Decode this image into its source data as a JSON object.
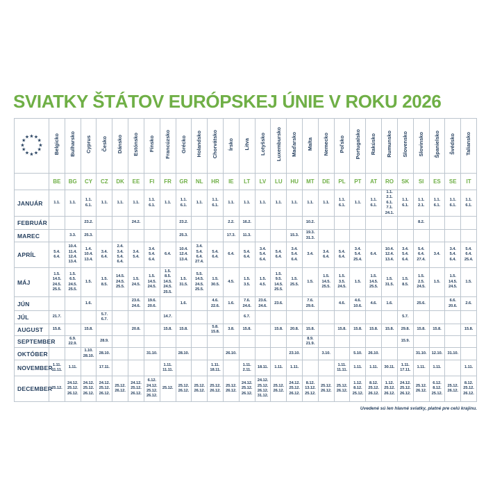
{
  "title": "SVIATKY ŠTÁTOV EURÓPSKEJ ÚNIE V ROKU 2026",
  "footnote": "Uvedené sú len hlavné sviatky, platné pre celú krajinu.",
  "logo_icon": "eu-stars",
  "colors": {
    "green": "#6faf46",
    "navy": "#26405f",
    "border": "#bcc5ce"
  },
  "countries": [
    {
      "name": "Belgicko",
      "code": "BE"
    },
    {
      "name": "Bulharsko",
      "code": "BG"
    },
    {
      "name": "Cyprus",
      "code": "CY"
    },
    {
      "name": "Česko",
      "code": "CZ"
    },
    {
      "name": "Dánsko",
      "code": "DK"
    },
    {
      "name": "Estónsko",
      "code": "EE"
    },
    {
      "name": "Fínsko",
      "code": "FI"
    },
    {
      "name": "Francúzsko",
      "code": "FR"
    },
    {
      "name": "Grécko",
      "code": "GR"
    },
    {
      "name": "Holandsko",
      "code": "NL"
    },
    {
      "name": "Chorvátsko",
      "code": "HR"
    },
    {
      "name": "Írsko",
      "code": "IE"
    },
    {
      "name": "Litva",
      "code": "LT"
    },
    {
      "name": "Lotyšsko",
      "code": "LV"
    },
    {
      "name": "Luxembursko",
      "code": "LU"
    },
    {
      "name": "Maďarsko",
      "code": "HU"
    },
    {
      "name": "Malta",
      "code": "MT"
    },
    {
      "name": "Nemecko",
      "code": "DE"
    },
    {
      "name": "Poľsko",
      "code": "PL"
    },
    {
      "name": "Portugalsko",
      "code": "PT"
    },
    {
      "name": "Rakúsko",
      "code": "AT"
    },
    {
      "name": "Rumunsko",
      "code": "RO"
    },
    {
      "name": "Slovensko",
      "code": "SK"
    },
    {
      "name": "Slovinsko",
      "code": "SI"
    },
    {
      "name": "Španielsko",
      "code": "ES"
    },
    {
      "name": "Švédsko",
      "code": "SE"
    },
    {
      "name": "Taliansko",
      "code": "IT"
    }
  ],
  "rows": [
    {
      "month": "JANUÁR",
      "cells": {
        "BE": [
          "1.1."
        ],
        "BG": [
          "1.1."
        ],
        "CY": [
          "1.1.",
          "6.1."
        ],
        "CZ": [
          "1.1."
        ],
        "DK": [
          "1.1."
        ],
        "EE": [
          "1.1."
        ],
        "FI": [
          "1.1.",
          "6.1."
        ],
        "FR": [
          "1.1."
        ],
        "GR": [
          "1.1.",
          "6.1."
        ],
        "NL": [
          "1.1."
        ],
        "HR": [
          "1.1.",
          "6.1."
        ],
        "IE": [
          "1.1."
        ],
        "LT": [
          "1.1."
        ],
        "LV": [
          "1.1."
        ],
        "LU": [
          "1.1."
        ],
        "HU": [
          "1.1."
        ],
        "MT": [
          "1.1."
        ],
        "DE": [
          "1.1."
        ],
        "PL": [
          "1.1.",
          "6.1."
        ],
        "PT": [
          "1.1."
        ],
        "AT": [
          "1.1.",
          "6.1."
        ],
        "RO": [
          "1.1.",
          "2.1.",
          "6.1.",
          "7.1.",
          "24.1."
        ],
        "SK": [
          "1.1.",
          "6.1."
        ],
        "SI": [
          "1.1.",
          "2.1."
        ],
        "ES": [
          "1.1.",
          "6.1."
        ],
        "SE": [
          "1.1.",
          "6.1."
        ],
        "IT": [
          "1.1.",
          "6.1."
        ]
      }
    },
    {
      "month": "FEBRUÁR",
      "cells": {
        "CY": [
          "23.2."
        ],
        "EE": [
          "24.2."
        ],
        "GR": [
          "23.2."
        ],
        "IE": [
          "2.2."
        ],
        "LT": [
          "16.2."
        ],
        "MT": [
          "10.2."
        ],
        "SI": [
          "8.2."
        ]
      }
    },
    {
      "month": "MAREC",
      "cells": {
        "BG": [
          "3.3."
        ],
        "CY": [
          "25.3."
        ],
        "GR": [
          "25.3."
        ],
        "IE": [
          "17.3."
        ],
        "LT": [
          "11.3."
        ],
        "HU": [
          "15.3."
        ],
        "MT": [
          "19.3.",
          "31.3."
        ]
      }
    },
    {
      "month": "APRÍL",
      "cells": {
        "BE": [
          "5.4.",
          "6.4."
        ],
        "BG": [
          "10.4.",
          "11.4.",
          "12.4.",
          "13.4."
        ],
        "CY": [
          "1.4.",
          "10.4.",
          "13.4."
        ],
        "CZ": [
          "3.4.",
          "6.4."
        ],
        "DK": [
          "2.4.",
          "3.4.",
          "5.4.",
          "6.4."
        ],
        "EE": [
          "3.4.",
          "5.4."
        ],
        "FI": [
          "3.4.",
          "5.4.",
          "6.4."
        ],
        "FR": [
          "6.4."
        ],
        "GR": [
          "10.4.",
          "12.4.",
          "13.4."
        ],
        "NL": [
          "3.4.",
          "5.4.",
          "6.4.",
          "27.4."
        ],
        "HR": [
          "5.4.",
          "6.4."
        ],
        "IE": [
          "6.4."
        ],
        "LT": [
          "5.4.",
          "6.4."
        ],
        "LV": [
          "3.4.",
          "5.4.",
          "6.4."
        ],
        "LU": [
          "5.4.",
          "6.4."
        ],
        "HU": [
          "3.4.",
          "5.4.",
          "6.4."
        ],
        "MT": [
          "3.4."
        ],
        "DE": [
          "3.4.",
          "6.4."
        ],
        "PL": [
          "5.4.",
          "6.4."
        ],
        "PT": [
          "3.4.",
          "5.4.",
          "25.4."
        ],
        "AT": [
          "6.4."
        ],
        "RO": [
          "10.4.",
          "12.4.",
          "13.4."
        ],
        "SK": [
          "3.4.",
          "5.4.",
          "6.4."
        ],
        "SI": [
          "5.4.",
          "6.4.",
          "27.4."
        ],
        "ES": [
          "3.4."
        ],
        "SE": [
          "3.4.",
          "5.4.",
          "6.4."
        ],
        "IT": [
          "5.4.",
          "6.4.",
          "25.4."
        ]
      }
    },
    {
      "month": "MÁJ",
      "cells": {
        "BE": [
          "1.5.",
          "14.5.",
          "24.5.",
          "25.5."
        ],
        "BG": [
          "1.5.",
          "6.5.",
          "24.5.",
          "25.5."
        ],
        "CY": [
          "1.5."
        ],
        "CZ": [
          "1.5.",
          "8.5."
        ],
        "DK": [
          "14.5.",
          "24.5.",
          "25.5."
        ],
        "EE": [
          "1.5.",
          "24.5."
        ],
        "FI": [
          "1.5.",
          "14.5.",
          "24.5."
        ],
        "FR": [
          "1.5.",
          "8.5.",
          "14.5.",
          "24.5.",
          "25.5."
        ],
        "GR": [
          "1.5.",
          "31.5."
        ],
        "NL": [
          "5.5.",
          "14.5.",
          "24.5.",
          "25.5."
        ],
        "HR": [
          "1.5.",
          "30.5."
        ],
        "IE": [
          "4.5."
        ],
        "LT": [
          "1.5.",
          "3.5."
        ],
        "LV": [
          "1.5.",
          "4.5."
        ],
        "LU": [
          "1.5.",
          "9.5.",
          "14.5.",
          "25.5."
        ],
        "HU": [
          "1.5.",
          "25.5."
        ],
        "MT": [
          "1.5."
        ],
        "DE": [
          "1.5.",
          "14.5.",
          "25.5."
        ],
        "PL": [
          "1.5.",
          "3.5.",
          "24.5."
        ],
        "PT": [
          "1.5."
        ],
        "AT": [
          "1.5.",
          "14.5.",
          "25.5."
        ],
        "RO": [
          "1.5.",
          "31.5."
        ],
        "SK": [
          "1.5.",
          "8.5."
        ],
        "SI": [
          "1.5.",
          "2.5.",
          "24.5."
        ],
        "ES": [
          "1.5."
        ],
        "SE": [
          "1.5.",
          "14.5.",
          "24.5."
        ],
        "IT": [
          "1.5."
        ]
      }
    },
    {
      "month": "JÚN",
      "cells": {
        "CY": [
          "1.6."
        ],
        "EE": [
          "23.6.",
          "24.6."
        ],
        "FI": [
          "19.6.",
          "20.6."
        ],
        "GR": [
          "1.6."
        ],
        "HR": [
          "4.6.",
          "22.6."
        ],
        "IE": [
          "1.6."
        ],
        "LT": [
          "7.6.",
          "24.6."
        ],
        "LV": [
          "23.6.",
          "24.6."
        ],
        "LU": [
          "23.6."
        ],
        "MT": [
          "7.6.",
          "29.6."
        ],
        "PL": [
          "4.6."
        ],
        "PT": [
          "4.6.",
          "10.6."
        ],
        "AT": [
          "4.6."
        ],
        "RO": [
          "1.6."
        ],
        "SI": [
          "25.6."
        ],
        "SE": [
          "6.6.",
          "20.6."
        ],
        "IT": [
          "2.6."
        ]
      }
    },
    {
      "month": "JÚL",
      "cells": {
        "BE": [
          "21.7."
        ],
        "CZ": [
          "5.7.",
          "6.7."
        ],
        "FR": [
          "14.7."
        ],
        "LT": [
          "6.7."
        ],
        "SK": [
          "5.7."
        ]
      }
    },
    {
      "month": "AUGUST",
      "cells": {
        "BE": [
          "15.8."
        ],
        "CY": [
          "15.8."
        ],
        "EE": [
          "20.8."
        ],
        "FR": [
          "15.8."
        ],
        "GR": [
          "15.8."
        ],
        "HR": [
          "5.8.",
          "15.8."
        ],
        "IE": [
          "3.8."
        ],
        "LT": [
          "15.8."
        ],
        "LU": [
          "15.8."
        ],
        "HU": [
          "20.8."
        ],
        "MT": [
          "15.8."
        ],
        "PL": [
          "15.8."
        ],
        "PT": [
          "15.8."
        ],
        "AT": [
          "15.8."
        ],
        "RO": [
          "15.8."
        ],
        "SK": [
          "29.8."
        ],
        "SI": [
          "15.8."
        ],
        "ES": [
          "15.8."
        ],
        "IT": [
          "15.8."
        ]
      }
    },
    {
      "month": "SEPTEMBER",
      "cells": {
        "BG": [
          "6.9.",
          "22.9."
        ],
        "CZ": [
          "28.9."
        ],
        "MT": [
          "8.9.",
          "21.9."
        ],
        "SK": [
          "15.9."
        ]
      }
    },
    {
      "month": "OKTÓBER",
      "cells": {
        "CY": [
          "1.10.",
          "28.10."
        ],
        "CZ": [
          "28.10."
        ],
        "FI": [
          "31.10."
        ],
        "GR": [
          "28.10."
        ],
        "IE": [
          "26.10."
        ],
        "HU": [
          "23.10."
        ],
        "DE": [
          "3.10."
        ],
        "PT": [
          "5.10."
        ],
        "AT": [
          "26.10."
        ],
        "SI": [
          "31.10."
        ],
        "ES": [
          "12.10."
        ],
        "SE": [
          "31.10."
        ]
      }
    },
    {
      "month": "NOVEMBER",
      "cells": {
        "BE": [
          "1.11.",
          "11.11."
        ],
        "BG": [
          "1.11."
        ],
        "CZ": [
          "17.11."
        ],
        "FR": [
          "1.11.",
          "11.11."
        ],
        "HR": [
          "1.11.",
          "18.11."
        ],
        "LT": [
          "1.11.",
          "2.11."
        ],
        "LV": [
          "18.11."
        ],
        "LU": [
          "1.11."
        ],
        "HU": [
          "1.11."
        ],
        "PL": [
          "1.11.",
          "11.11."
        ],
        "PT": [
          "1.11."
        ],
        "AT": [
          "1.11."
        ],
        "RO": [
          "30.11."
        ],
        "SK": [
          "1.11.",
          "17.11."
        ],
        "SI": [
          "1.11."
        ],
        "ES": [
          "1.11."
        ],
        "IT": [
          "1.11."
        ]
      }
    },
    {
      "month": "DECEMBER",
      "cells": {
        "BE": [
          "25.12."
        ],
        "BG": [
          "24.12.",
          "25.12.",
          "26.12."
        ],
        "CY": [
          "24.12.",
          "25.12.",
          "26.12."
        ],
        "CZ": [
          "24.12.",
          "25.12.",
          "26.12."
        ],
        "DK": [
          "25.12.",
          "26.12."
        ],
        "EE": [
          "24.12.",
          "25.12.",
          "26.12."
        ],
        "FI": [
          "6.12.",
          "24.12.",
          "25.12.",
          "26.12."
        ],
        "FR": [
          "25.12."
        ],
        "GR": [
          "25.12.",
          "26.12."
        ],
        "NL": [
          "25.12.",
          "26.12."
        ],
        "HR": [
          "25.12.",
          "26.12."
        ],
        "IE": [
          "25.12.",
          "26.12."
        ],
        "LT": [
          "24.12.",
          "25.12.",
          "26.12."
        ],
        "LV": [
          "24.12.",
          "25.12.",
          "26.12.",
          "31.12."
        ],
        "LU": [
          "25.12.",
          "26.12."
        ],
        "HU": [
          "24.12.",
          "25.12.",
          "26.12."
        ],
        "MT": [
          "8.12.",
          "13.12.",
          "25.12."
        ],
        "DE": [
          "25.12.",
          "26.12."
        ],
        "PL": [
          "25.12.",
          "26.12."
        ],
        "PT": [
          "1.12.",
          "8.12.",
          "25.12."
        ],
        "AT": [
          "8.12.",
          "25.12.",
          "26.12."
        ],
        "RO": [
          "1.12.",
          "25.12.",
          "26.12."
        ],
        "SK": [
          "24.12.",
          "25.12.",
          "26.12."
        ],
        "SI": [
          "25.12.",
          "26.12."
        ],
        "ES": [
          "6.12.",
          "8.12.",
          "25.12."
        ],
        "SE": [
          "25.12.",
          "26.12."
        ],
        "IT": [
          "8.12.",
          "25.12.",
          "26.12."
        ]
      }
    }
  ]
}
